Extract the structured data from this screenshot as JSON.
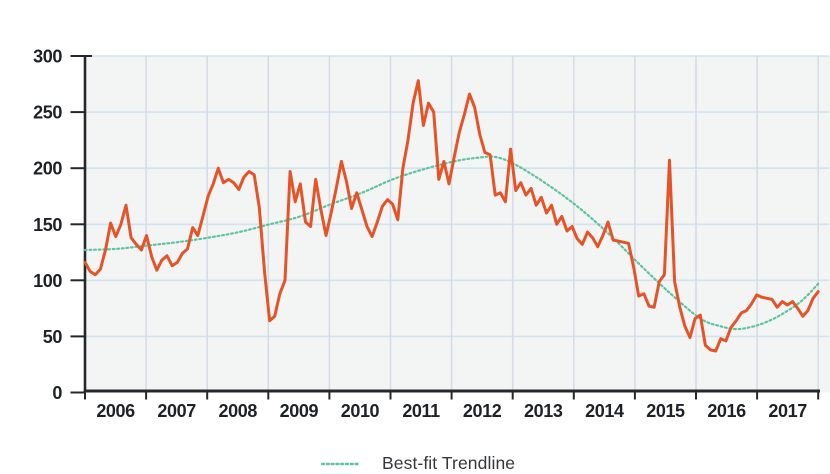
{
  "colors": {
    "page_background": "#ffffff",
    "plot_background": "#f3f5f5",
    "h_gridline": "#d3e2f0",
    "v_gridline": "#d6dce6",
    "axis": "#24282d",
    "tick_label": "#1e2227",
    "legend_text": "#34383c",
    "main_line": "#e65327",
    "trendline": "#5fc39e"
  },
  "legend": {
    "position": "bottom-center",
    "items": [
      {
        "label": "Best-fit Trendline",
        "swatch_style": "dotted",
        "swatch_color": "#5fc39e"
      }
    ]
  },
  "chart_data": {
    "type": "line",
    "title": "",
    "x_axis": {
      "tick_labels": [
        "2006",
        "2007",
        "2008",
        "2009",
        "2010",
        "2011",
        "2012",
        "2013",
        "2014",
        "2015",
        "2016",
        "2017"
      ],
      "granularity": "monthly",
      "range": [
        "Jan 2006",
        "Dec 2017"
      ]
    },
    "y_axis": {
      "tick_labels": [
        "0",
        "50",
        "100",
        "150",
        "200",
        "250",
        "300"
      ],
      "min": 0,
      "max": 300,
      "grid": true
    },
    "series": [
      {
        "id": "main",
        "name": "",
        "color": "#e65327",
        "line_style": "solid",
        "start": "2006-01",
        "values_monthly": [
          116,
          108,
          105,
          110,
          127,
          151,
          139,
          150,
          167,
          138,
          132,
          127,
          140,
          121,
          109,
          118,
          122,
          113,
          116,
          124,
          128,
          147,
          140,
          157,
          175,
          186,
          200,
          187,
          190,
          187,
          181,
          192,
          197,
          194,
          165,
          108,
          64,
          68,
          88,
          100,
          197,
          170,
          186,
          152,
          148,
          190,
          163,
          140,
          160,
          182,
          206,
          188,
          164,
          178,
          163,
          148,
          139,
          152,
          166,
          172,
          168,
          154,
          200,
          225,
          258,
          278,
          238,
          258,
          250,
          190,
          206,
          186,
          210,
          232,
          248,
          266,
          254,
          230,
          214,
          212,
          176,
          178,
          170,
          217,
          180,
          187,
          176,
          182,
          167,
          174,
          160,
          167,
          150,
          157,
          144,
          148,
          137,
          132,
          143,
          138,
          130,
          140,
          152,
          136,
          135,
          134,
          133,
          112,
          86,
          88,
          77,
          76,
          99,
          105,
          207,
          99,
          76,
          59,
          49,
          66,
          69,
          42,
          38,
          37,
          48,
          46,
          58,
          64,
          71,
          73,
          79,
          87,
          85,
          84,
          83,
          76,
          81,
          78,
          81,
          75,
          68,
          73,
          84,
          90
        ]
      },
      {
        "id": "trendline",
        "name": "Best-fit Trendline",
        "color": "#5fc39e",
        "line_style": "dotted",
        "anchor_points": [
          {
            "month_index": 0,
            "value": 127
          },
          {
            "month_index": 6,
            "value": 128
          },
          {
            "month_index": 12,
            "value": 131
          },
          {
            "month_index": 18,
            "value": 134
          },
          {
            "month_index": 24,
            "value": 138
          },
          {
            "month_index": 30,
            "value": 143
          },
          {
            "month_index": 36,
            "value": 150
          },
          {
            "month_index": 42,
            "value": 157
          },
          {
            "month_index": 48,
            "value": 168
          },
          {
            "month_index": 54,
            "value": 178
          },
          {
            "month_index": 60,
            "value": 190
          },
          {
            "month_index": 66,
            "value": 199
          },
          {
            "month_index": 72,
            "value": 206
          },
          {
            "month_index": 76,
            "value": 209
          },
          {
            "month_index": 80,
            "value": 210
          },
          {
            "month_index": 84,
            "value": 203
          },
          {
            "month_index": 90,
            "value": 186
          },
          {
            "month_index": 96,
            "value": 166
          },
          {
            "month_index": 102,
            "value": 142
          },
          {
            "month_index": 108,
            "value": 115
          },
          {
            "month_index": 114,
            "value": 89
          },
          {
            "month_index": 120,
            "value": 66
          },
          {
            "month_index": 124,
            "value": 59
          },
          {
            "month_index": 127,
            "value": 56.5
          },
          {
            "month_index": 130,
            "value": 58.5
          },
          {
            "month_index": 133,
            "value": 63
          },
          {
            "month_index": 136,
            "value": 70
          },
          {
            "month_index": 139,
            "value": 79
          },
          {
            "month_index": 141,
            "value": 87
          },
          {
            "month_index": 143,
            "value": 97
          }
        ]
      }
    ],
    "legend_position": "bottom-center"
  }
}
